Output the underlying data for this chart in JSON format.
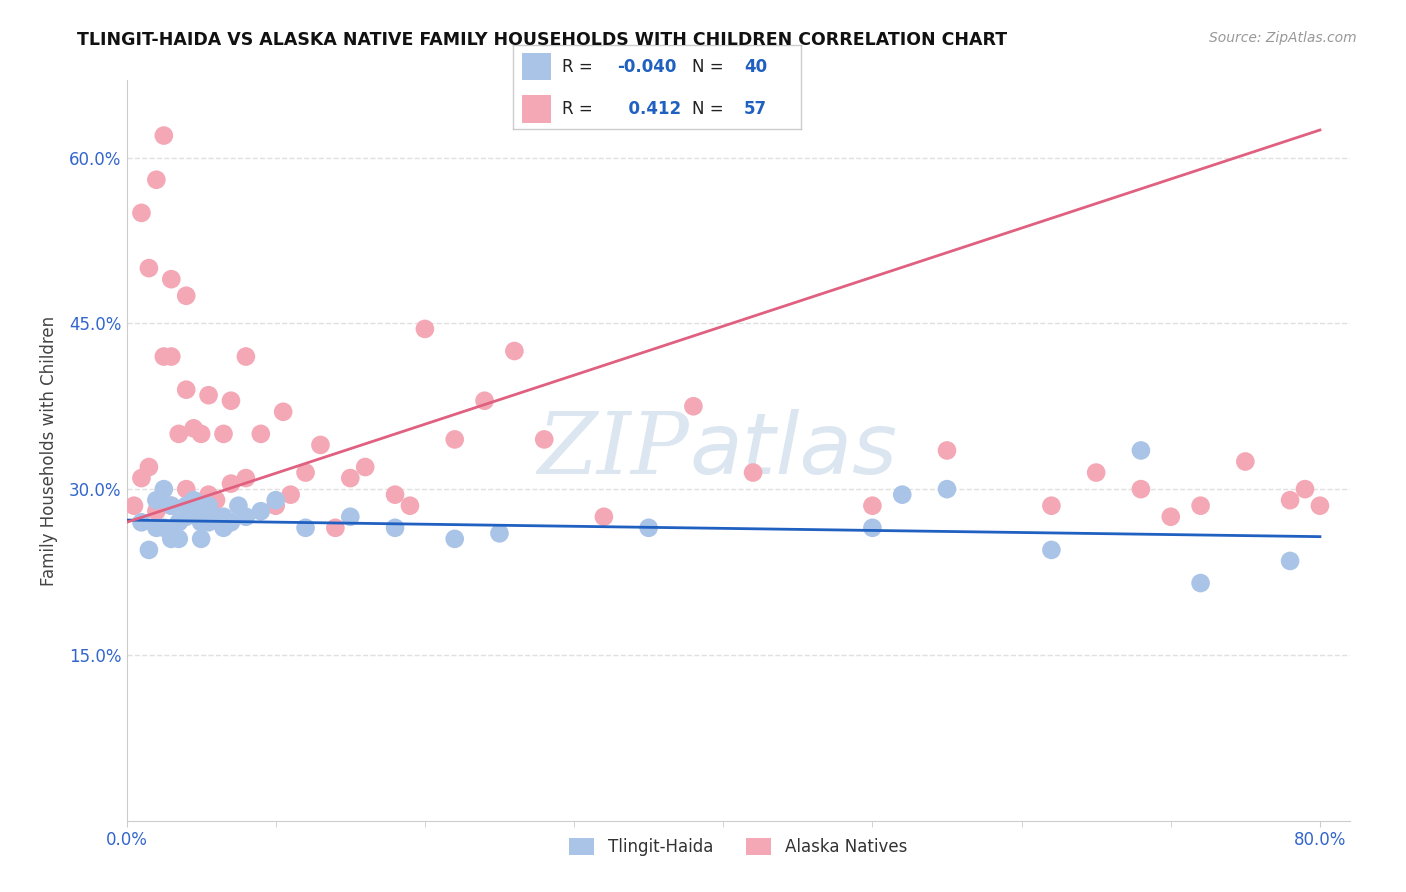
{
  "title": "TLINGIT-HAIDA VS ALASKA NATIVE FAMILY HOUSEHOLDS WITH CHILDREN CORRELATION CHART",
  "source": "Source: ZipAtlas.com",
  "ylabel": "Family Households with Children",
  "xlim": [
    0.0,
    0.82
  ],
  "ylim": [
    0.0,
    0.67
  ],
  "yticks": [
    0.15,
    0.3,
    0.45,
    0.6
  ],
  "ytick_labels": [
    "15.0%",
    "30.0%",
    "45.0%",
    "60.0%"
  ],
  "xtick_labels": [
    "0.0%",
    "80.0%"
  ],
  "r_tlingit": -0.04,
  "n_tlingit": 40,
  "r_alaska": 0.412,
  "n_alaska": 57,
  "tlingit_color": "#aac4e8",
  "alaska_color": "#f4a7b5",
  "tlingit_line_color": "#2060c0",
  "alaska_line_color": "#e06080",
  "tick_color": "#3366cc",
  "watermark_zip": "ZIP",
  "watermark_atlas": "atlas",
  "background_color": "#ffffff",
  "grid_color": "#e0e0e0",
  "tlingit_x": [
    0.01,
    0.015,
    0.02,
    0.02,
    0.025,
    0.025,
    0.03,
    0.03,
    0.035,
    0.035,
    0.04,
    0.04,
    0.045,
    0.045,
    0.05,
    0.05,
    0.05,
    0.055,
    0.055,
    0.06,
    0.065,
    0.065,
    0.07,
    0.075,
    0.08,
    0.09,
    0.1,
    0.12,
    0.15,
    0.18,
    0.22,
    0.25,
    0.35,
    0.5,
    0.52,
    0.55,
    0.62,
    0.68,
    0.72,
    0.78
  ],
  "tlingit_y": [
    0.27,
    0.245,
    0.265,
    0.29,
    0.265,
    0.3,
    0.255,
    0.285,
    0.255,
    0.27,
    0.275,
    0.285,
    0.28,
    0.29,
    0.255,
    0.27,
    0.285,
    0.27,
    0.285,
    0.275,
    0.265,
    0.275,
    0.27,
    0.285,
    0.275,
    0.28,
    0.29,
    0.265,
    0.275,
    0.265,
    0.255,
    0.26,
    0.265,
    0.265,
    0.295,
    0.3,
    0.245,
    0.335,
    0.215,
    0.235
  ],
  "alaska_x": [
    0.005,
    0.01,
    0.01,
    0.015,
    0.015,
    0.02,
    0.02,
    0.025,
    0.025,
    0.03,
    0.03,
    0.03,
    0.035,
    0.04,
    0.04,
    0.04,
    0.045,
    0.05,
    0.05,
    0.055,
    0.055,
    0.06,
    0.065,
    0.07,
    0.07,
    0.08,
    0.08,
    0.09,
    0.1,
    0.105,
    0.11,
    0.12,
    0.13,
    0.14,
    0.15,
    0.16,
    0.18,
    0.19,
    0.2,
    0.22,
    0.24,
    0.26,
    0.28,
    0.32,
    0.38,
    0.42,
    0.5,
    0.55,
    0.62,
    0.65,
    0.68,
    0.7,
    0.72,
    0.75,
    0.78,
    0.79,
    0.8
  ],
  "alaska_y": [
    0.285,
    0.31,
    0.55,
    0.32,
    0.5,
    0.28,
    0.58,
    0.42,
    0.62,
    0.285,
    0.42,
    0.49,
    0.35,
    0.3,
    0.39,
    0.475,
    0.355,
    0.285,
    0.35,
    0.295,
    0.385,
    0.29,
    0.35,
    0.305,
    0.38,
    0.31,
    0.42,
    0.35,
    0.285,
    0.37,
    0.295,
    0.315,
    0.34,
    0.265,
    0.31,
    0.32,
    0.295,
    0.285,
    0.445,
    0.345,
    0.38,
    0.425,
    0.345,
    0.275,
    0.375,
    0.315,
    0.285,
    0.335,
    0.285,
    0.315,
    0.3,
    0.275,
    0.285,
    0.325,
    0.29,
    0.3,
    0.285
  ]
}
